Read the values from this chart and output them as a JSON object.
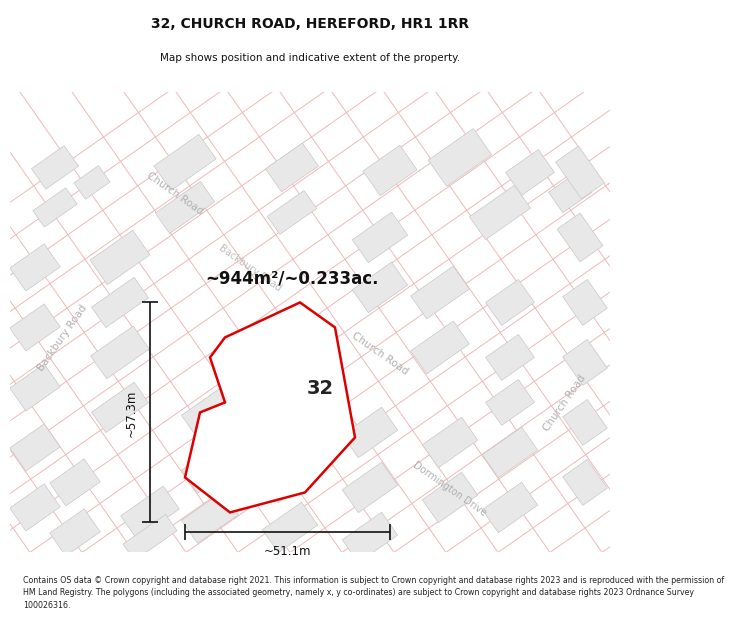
{
  "title": "32, CHURCH ROAD, HEREFORD, HR1 1RR",
  "subtitle": "Map shows position and indicative extent of the property.",
  "footer_line1": "Contains OS data © Crown copyright and database right 2021. This information is subject to Crown copyright and database rights 2023 and is reproduced with the permission of",
  "footer_line2": "HM Land Registry. The polygons (including the associated geometry, namely x, y co-ordinates) are subject to Crown copyright and database rights 2023 Ordnance Survey",
  "footer_line3": "100026316.",
  "area_label": "~944m²/~0.233ac.",
  "number_label": "32",
  "dim_width": "~51.1m",
  "dim_height": "~57.3m",
  "bg_color": "#ffffff",
  "map_bg": "#ffffff",
  "building_fill": "#e8e8e8",
  "building_edge": "#c8c8c8",
  "road_line_color": "#f0b8b8",
  "property_line_color": "#dd0000",
  "property_fill": "#ffffff",
  "road_label_color": "#b0b0b0",
  "dim_color": "#111111",
  "title_color": "#111111",
  "footer_color": "#222222",
  "area_color": "#111111"
}
